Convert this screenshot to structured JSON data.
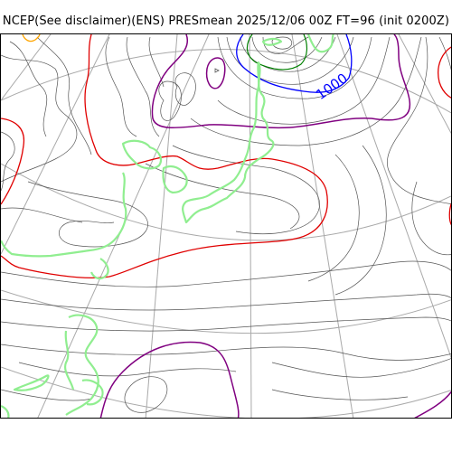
{
  "header": {
    "title": "NCEP(See disclaimer)(ENS) PRESmean 2025/12/06 00Z FT=96 (init 0200Z)"
  },
  "map": {
    "contour_labels": [
      {
        "text": "1000",
        "color": "#0000ff"
      }
    ],
    "colors": {
      "isobar": "#555555",
      "red_isobar": "#e00000",
      "purple_isobar": "#800080",
      "blue_isobar": "#0000ff",
      "green_isobar": "#008000",
      "orange_isobar": "#ffa500",
      "coastline": "#90ee90",
      "graticule": "#a9a9a9"
    }
  }
}
